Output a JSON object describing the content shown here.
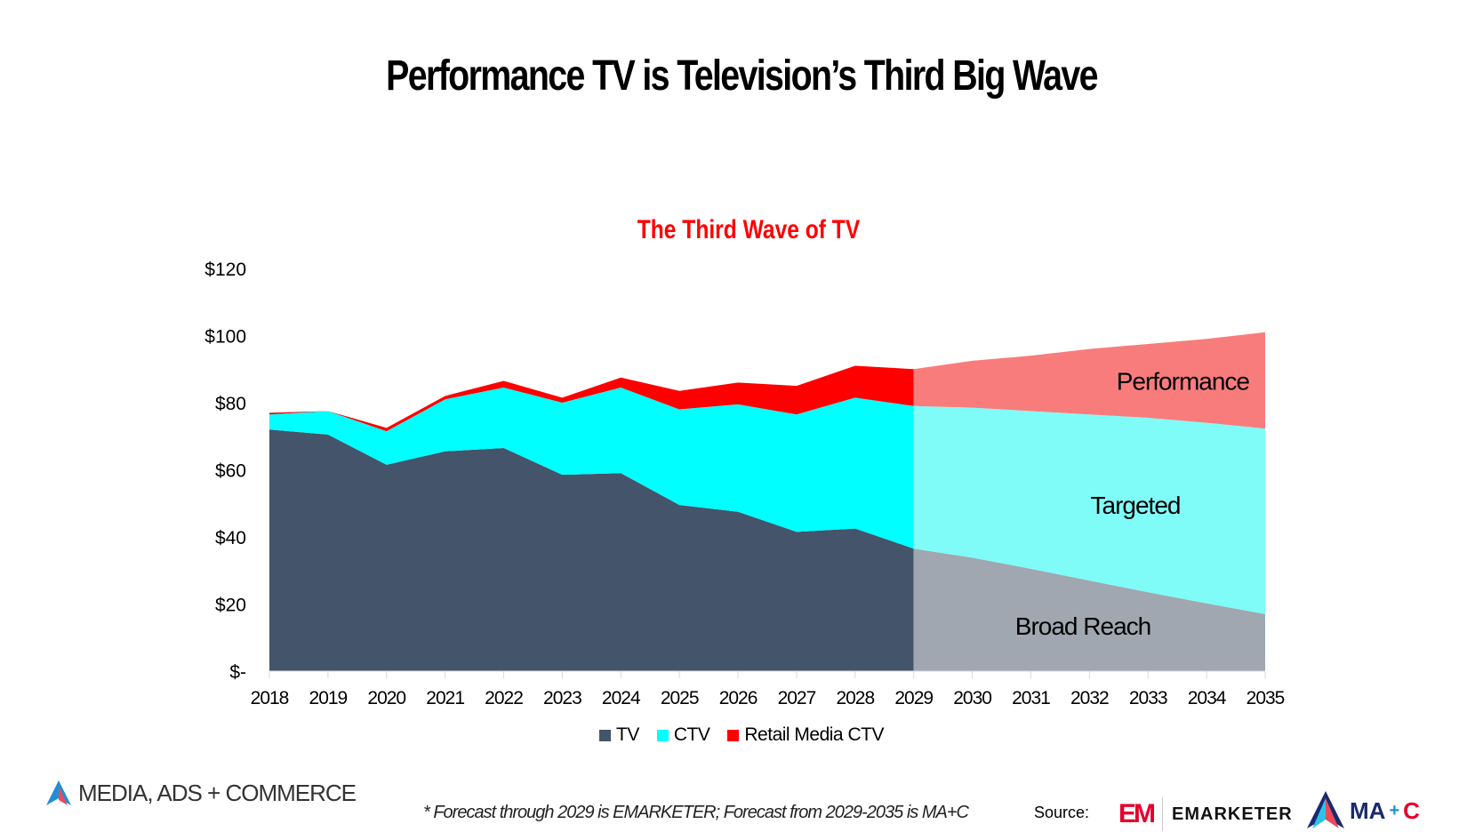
{
  "header": {
    "title": "Performance TV is Television’s Third Big Wave"
  },
  "chart_data": {
    "type": "area",
    "stacked": true,
    "title": "The Third Wave of TV",
    "xlabel": "",
    "ylabel": "",
    "ylim": [
      0,
      120
    ],
    "yticks": [
      0,
      20,
      40,
      60,
      80,
      100,
      120
    ],
    "ytick_labels": [
      "$-",
      "$20",
      "$40",
      "$60",
      "$80",
      "$100",
      "$120"
    ],
    "categories": [
      "2018",
      "2019",
      "2020",
      "2021",
      "2022",
      "2023",
      "2024",
      "2025",
      "2026",
      "2027",
      "2028",
      "2029",
      "2030",
      "2031",
      "2032",
      "2033",
      "2034",
      "2035"
    ],
    "forecast_start": "2029",
    "series": [
      {
        "name": "TV",
        "forecast_label": "Broad Reach",
        "color": "#44546a",
        "forecast_color": "#a0a7b1",
        "values": [
          72,
          70.5,
          61.5,
          65.5,
          66.5,
          58.5,
          59,
          49.5,
          47.5,
          41.5,
          42.5,
          36.5,
          33.8,
          30.5,
          27,
          23.5,
          20.2,
          17
        ]
      },
      {
        "name": "CTV",
        "forecast_label": "Targeted",
        "color": "#00ffff",
        "forecast_color": "#7ffcf8",
        "values": [
          4.5,
          7,
          10,
          15.5,
          18,
          21.5,
          25.5,
          28.5,
          32,
          35,
          39,
          42.5,
          44.7,
          47,
          49.5,
          52,
          53.8,
          55.3
        ]
      },
      {
        "name": "Retail Media CTV",
        "forecast_label": "Performance",
        "color": "#ff0000",
        "forecast_color": "#f97c7c",
        "values": [
          0.5,
          0,
          1,
          1,
          2,
          1.5,
          3,
          5.5,
          6.5,
          8.5,
          9.5,
          11,
          14,
          16.5,
          19.5,
          22,
          25,
          28.7
        ]
      }
    ],
    "legend_position": "bottom-center",
    "grid": false
  },
  "footer": {
    "brand": "MEDIA, ADS + COMMERCE",
    "note": "* Forecast through 2029 is EMARKETER; Forecast from 2029-2035 is MA+C",
    "source_label": "Source:",
    "emarketer_logo": "EM",
    "emarketer_name": "EMARKETER",
    "mac_logo": {
      "ma": "MA",
      "plus": "+",
      "c": "C"
    }
  }
}
